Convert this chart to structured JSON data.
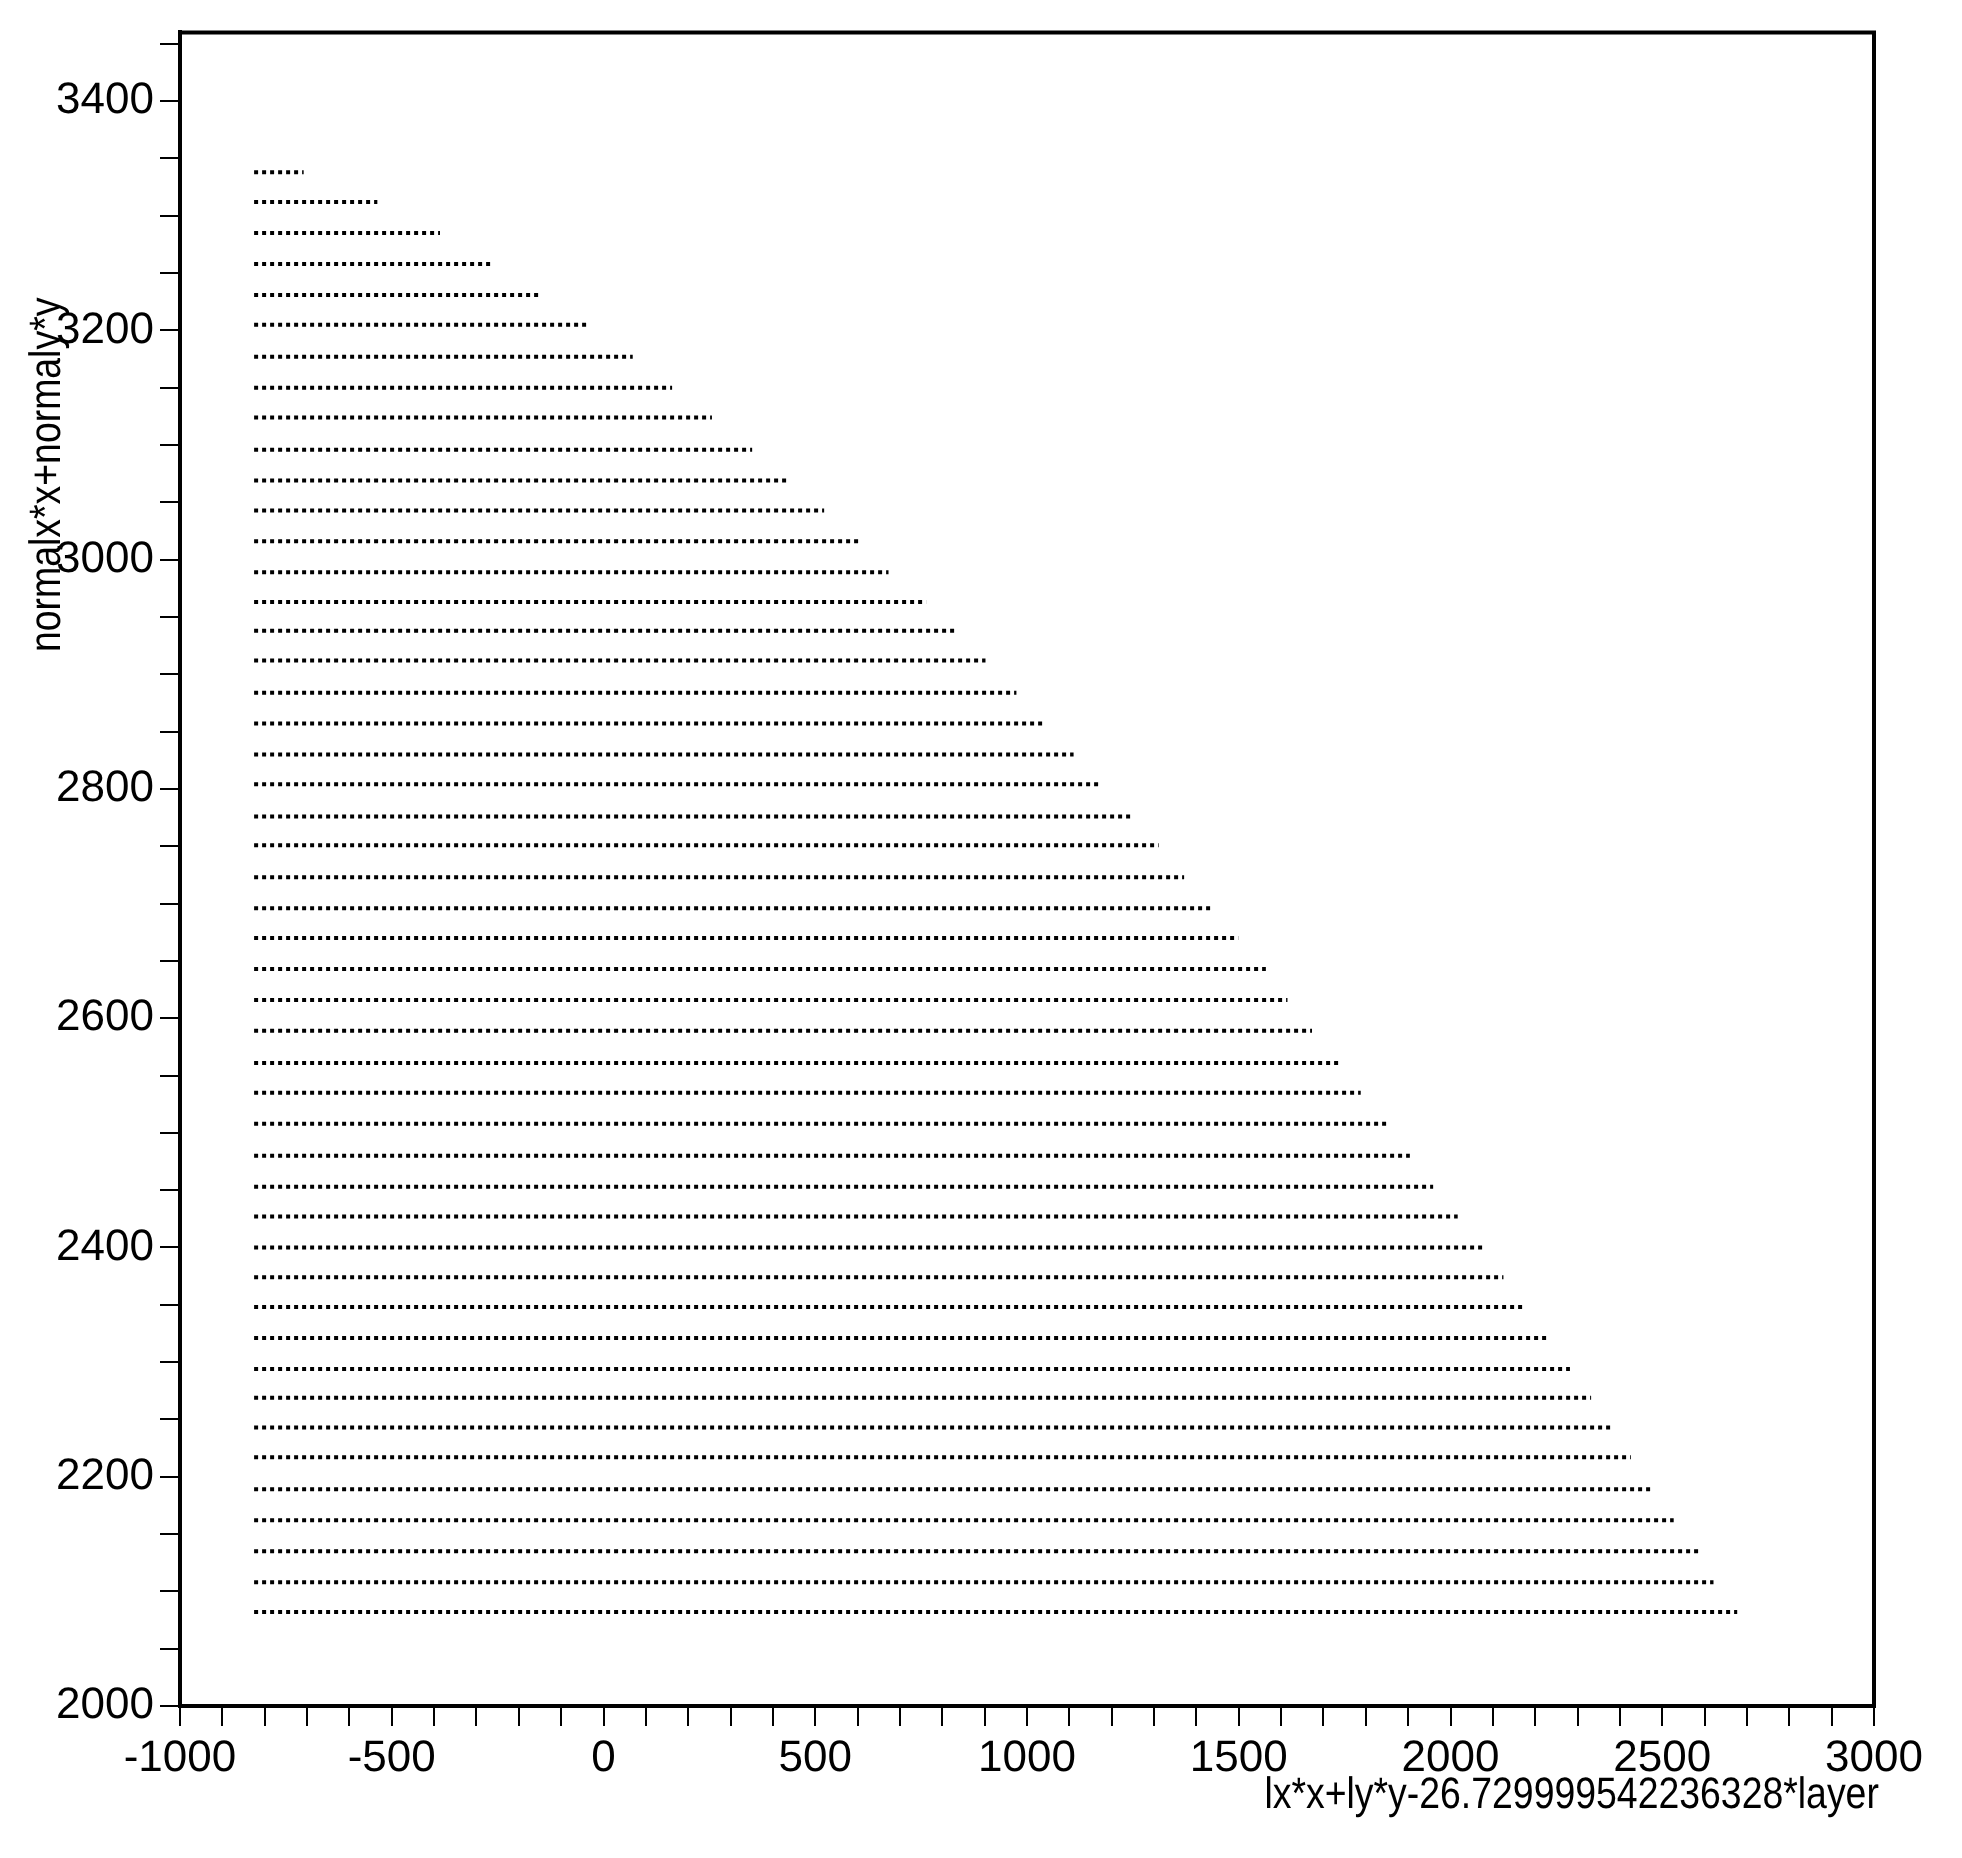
{
  "chart_data": {
    "type": "line",
    "xlabel": "lx*x+ly*y-26.729999542236328*layer",
    "ylabel": "normalx*x+normaly*y",
    "xlim": [
      -1000,
      3000
    ],
    "ylim": [
      2000,
      3460
    ],
    "xticks": [
      -1000,
      {
        "value": -900,
        "label": null
      },
      {
        "value": -800,
        "label": null
      },
      {
        "value": -700,
        "label": null
      },
      {
        "value": -600,
        "label": null
      },
      -500,
      {
        "value": -400,
        "label": null
      },
      {
        "value": -300,
        "label": null
      },
      {
        "value": -200,
        "label": null
      },
      {
        "value": -100,
        "label": null
      },
      0,
      {
        "value": 100,
        "label": null
      },
      {
        "value": 200,
        "label": null
      },
      {
        "value": 300,
        "label": null
      },
      {
        "value": 400,
        "label": null
      },
      500,
      {
        "value": 600,
        "label": null
      },
      {
        "value": 700,
        "label": null
      },
      {
        "value": 800,
        "label": null
      },
      {
        "value": 900,
        "label": null
      },
      1000,
      {
        "value": 1100,
        "label": null
      },
      {
        "value": 1200,
        "label": null
      },
      {
        "value": 1300,
        "label": null
      },
      {
        "value": 1400,
        "label": null
      },
      1500,
      {
        "value": 1600,
        "label": null
      },
      {
        "value": 1700,
        "label": null
      },
      {
        "value": 1800,
        "label": null
      },
      {
        "value": 1900,
        "label": null
      },
      2000,
      {
        "value": 2100,
        "label": null
      },
      {
        "value": 2200,
        "label": null
      },
      {
        "value": 2300,
        "label": null
      },
      {
        "value": 2400,
        "label": null
      },
      2500,
      {
        "value": 2600,
        "label": null
      },
      {
        "value": 2700,
        "label": null
      },
      {
        "value": 2800,
        "label": null
      },
      {
        "value": 2900,
        "label": null
      },
      3000
    ],
    "yticks": [
      2000,
      {
        "value": 2050,
        "label": null
      },
      {
        "value": 2100,
        "label": null
      },
      {
        "value": 2150,
        "label": null
      },
      2200,
      {
        "value": 2250,
        "label": null
      },
      {
        "value": 2300,
        "label": null
      },
      {
        "value": 2350,
        "label": null
      },
      2400,
      {
        "value": 2450,
        "label": null
      },
      {
        "value": 2500,
        "label": null
      },
      {
        "value": 2550,
        "label": null
      },
      2600,
      {
        "value": 2650,
        "label": null
      },
      {
        "value": 2700,
        "label": null
      },
      {
        "value": 2750,
        "label": null
      },
      2800,
      {
        "value": 2850,
        "label": null
      },
      {
        "value": 2900,
        "label": null
      },
      {
        "value": 2950,
        "label": null
      },
      3000,
      {
        "value": 3050,
        "label": null
      },
      {
        "value": 3100,
        "label": null
      },
      {
        "value": 3150,
        "label": null
      },
      3200,
      {
        "value": 3250,
        "label": null
      },
      {
        "value": 3300,
        "label": null
      },
      {
        "value": 3350,
        "label": null
      },
      3400,
      {
        "value": 3450,
        "label": null
      }
    ],
    "grid": false,
    "legend": false,
    "marker": "none",
    "line_style": "dotted",
    "series": [
      {
        "color": "#000000",
        "x": [
          -825,
          -708
        ],
        "values": [
          3338,
          3338
        ]
      },
      {
        "color": "#000000",
        "x": [
          -825,
          -534
        ],
        "values": [
          3312,
          3312
        ]
      },
      {
        "color": "#000000",
        "x": [
          -825,
          -386
        ],
        "values": [
          3285,
          3285
        ]
      },
      {
        "color": "#000000",
        "x": [
          -825,
          -262
        ],
        "values": [
          3258,
          3258
        ]
      },
      {
        "color": "#000000",
        "x": [
          -825,
          -148
        ],
        "values": [
          3231,
          3231
        ]
      },
      {
        "color": "#000000",
        "x": [
          -825,
          -32
        ],
        "values": [
          3205,
          3205
        ]
      },
      {
        "color": "#000000",
        "x": [
          -825,
          69
        ],
        "values": [
          3177,
          3177
        ]
      },
      {
        "color": "#000000",
        "x": [
          -825,
          162
        ],
        "values": [
          3150,
          3150
        ]
      },
      {
        "color": "#000000",
        "x": [
          -825,
          256
        ],
        "values": [
          3124,
          3124
        ]
      },
      {
        "color": "#000000",
        "x": [
          -825,
          351
        ],
        "values": [
          3096,
          3096
        ]
      },
      {
        "color": "#000000",
        "x": [
          -825,
          437
        ],
        "values": [
          3069,
          3069
        ]
      },
      {
        "color": "#000000",
        "x": [
          -825,
          521
        ],
        "values": [
          3043,
          3043
        ]
      },
      {
        "color": "#000000",
        "x": [
          -825,
          603
        ],
        "values": [
          3016,
          3016
        ]
      },
      {
        "color": "#000000",
        "x": [
          -825,
          673
        ],
        "values": [
          2989,
          2989
        ]
      },
      {
        "color": "#000000",
        "x": [
          -825,
          762
        ],
        "values": [
          2963,
          2963
        ]
      },
      {
        "color": "#000000",
        "x": [
          -825,
          831
        ],
        "values": [
          2938,
          2938
        ]
      },
      {
        "color": "#000000",
        "x": [
          -825,
          902
        ],
        "values": [
          2912,
          2912
        ]
      },
      {
        "color": "#000000",
        "x": [
          -825,
          975
        ],
        "values": [
          2884,
          2884
        ]
      },
      {
        "color": "#000000",
        "x": [
          -825,
          1040
        ],
        "values": [
          2857,
          2857
        ]
      },
      {
        "color": "#000000",
        "x": [
          -825,
          1110
        ],
        "values": [
          2830,
          2830
        ]
      },
      {
        "color": "#000000",
        "x": [
          -825,
          1174
        ],
        "values": [
          2804,
          2804
        ]
      },
      {
        "color": "#000000",
        "x": [
          -825,
          1248
        ],
        "values": [
          2776,
          2776
        ]
      },
      {
        "color": "#000000",
        "x": [
          -825,
          1311
        ],
        "values": [
          2751,
          2751
        ]
      },
      {
        "color": "#000000",
        "x": [
          -825,
          1371
        ],
        "values": [
          2723,
          2723
        ]
      },
      {
        "color": "#000000",
        "x": [
          -825,
          1436
        ],
        "values": [
          2696,
          2696
        ]
      },
      {
        "color": "#000000",
        "x": [
          -825,
          1499
        ],
        "values": [
          2670,
          2670
        ]
      },
      {
        "color": "#000000",
        "x": [
          -825,
          1564
        ],
        "values": [
          2643,
          2643
        ]
      },
      {
        "color": "#000000",
        "x": [
          -825,
          1615
        ],
        "values": [
          2616,
          2616
        ]
      },
      {
        "color": "#000000",
        "x": [
          -825,
          1673
        ],
        "values": [
          2589,
          2589
        ]
      },
      {
        "color": "#000000",
        "x": [
          -825,
          1737
        ],
        "values": [
          2561,
          2561
        ]
      },
      {
        "color": "#000000",
        "x": [
          -825,
          1788
        ],
        "values": [
          2535,
          2535
        ]
      },
      {
        "color": "#000000",
        "x": [
          -825,
          1850
        ],
        "values": [
          2508,
          2508
        ]
      },
      {
        "color": "#000000",
        "x": [
          -825,
          1904
        ],
        "values": [
          2480,
          2480
        ]
      },
      {
        "color": "#000000",
        "x": [
          -825,
          1959
        ],
        "values": [
          2453,
          2453
        ]
      },
      {
        "color": "#000000",
        "x": [
          -825,
          2017
        ],
        "values": [
          2427,
          2427
        ]
      },
      {
        "color": "#000000",
        "x": [
          -825,
          2075
        ],
        "values": [
          2400,
          2400
        ]
      },
      {
        "color": "#000000",
        "x": [
          -825,
          2125
        ],
        "values": [
          2374,
          2374
        ]
      },
      {
        "color": "#000000",
        "x": [
          -825,
          2176
        ],
        "values": [
          2348,
          2348
        ]
      },
      {
        "color": "#000000",
        "x": [
          -825,
          2226
        ],
        "values": [
          2321,
          2321
        ]
      },
      {
        "color": "#000000",
        "x": [
          -825,
          2282
        ],
        "values": [
          2294,
          2294
        ]
      },
      {
        "color": "#000000",
        "x": [
          -825,
          2332
        ],
        "values": [
          2269,
          2269
        ]
      },
      {
        "color": "#000000",
        "x": [
          -825,
          2383
        ],
        "values": [
          2243,
          2243
        ]
      },
      {
        "color": "#000000",
        "x": [
          -825,
          2426
        ],
        "values": [
          2217,
          2217
        ]
      },
      {
        "color": "#000000",
        "x": [
          -825,
          2477
        ],
        "values": [
          2189,
          2189
        ]
      },
      {
        "color": "#000000",
        "x": [
          -825,
          2527
        ],
        "values": [
          2162,
          2162
        ]
      },
      {
        "color": "#000000",
        "x": [
          -825,
          2586
        ],
        "values": [
          2135,
          2135
        ]
      },
      {
        "color": "#000000",
        "x": [
          -825,
          2621
        ],
        "values": [
          2108,
          2108
        ]
      },
      {
        "color": "#000000",
        "x": [
          -825,
          2677
        ],
        "values": [
          2082,
          2082
        ]
      }
    ]
  }
}
